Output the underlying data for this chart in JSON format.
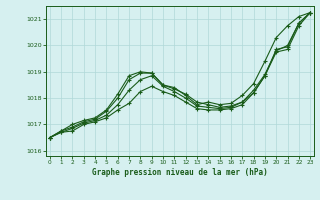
{
  "xlabel": "Graphe pression niveau de la mer (hPa)",
  "background_color": "#d6f0f0",
  "grid_color": "#b0d8d8",
  "line_color": "#1a5c1a",
  "ylim": [
    1015.8,
    1021.5
  ],
  "xlim": [
    -0.3,
    23.3
  ],
  "yticks": [
    1016,
    1017,
    1018,
    1019,
    1020,
    1021
  ],
  "xticks": [
    0,
    1,
    2,
    3,
    4,
    5,
    6,
    7,
    8,
    9,
    10,
    11,
    12,
    13,
    14,
    15,
    16,
    17,
    18,
    19,
    20,
    21,
    22,
    23
  ],
  "line1": [
    1016.5,
    1016.7,
    1016.75,
    1017.0,
    1017.1,
    1017.25,
    1017.55,
    1017.8,
    1018.25,
    1018.45,
    1018.25,
    1018.1,
    1017.85,
    1017.6,
    1017.55,
    1017.55,
    1017.6,
    1017.75,
    1018.2,
    1018.85,
    1019.85,
    1019.95,
    1020.85,
    1021.25
  ],
  "line2": [
    1016.5,
    1016.7,
    1016.85,
    1017.05,
    1017.15,
    1017.35,
    1017.75,
    1018.3,
    1018.7,
    1018.85,
    1018.45,
    1018.25,
    1018.0,
    1017.7,
    1017.65,
    1017.6,
    1017.65,
    1017.85,
    1018.3,
    1018.9,
    1019.8,
    1020.0,
    1020.85,
    1021.25
  ],
  "line3": [
    1016.5,
    1016.75,
    1016.9,
    1017.1,
    1017.2,
    1017.5,
    1018.0,
    1018.7,
    1018.95,
    1018.95,
    1018.5,
    1018.4,
    1018.1,
    1017.75,
    1017.85,
    1017.75,
    1017.8,
    1018.1,
    1018.55,
    1019.4,
    1020.3,
    1020.75,
    1021.1,
    1021.25
  ],
  "line4": [
    1016.5,
    1016.75,
    1017.0,
    1017.15,
    1017.25,
    1017.55,
    1018.15,
    1018.85,
    1019.0,
    1018.95,
    1018.5,
    1018.35,
    1018.15,
    1017.85,
    1017.75,
    1017.65,
    1017.7,
    1017.85,
    1018.2,
    1018.85,
    1019.75,
    1019.85,
    1020.75,
    1021.25
  ]
}
